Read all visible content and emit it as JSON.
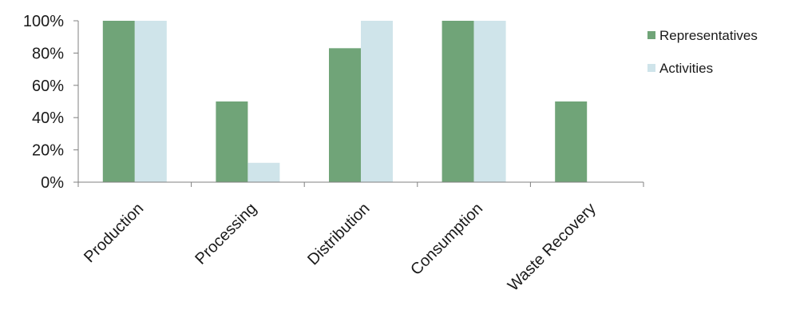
{
  "chart_data": {
    "type": "bar",
    "title": "",
    "xlabel": "",
    "ylabel": "",
    "categories": [
      "Production",
      "Processing",
      "Distribution",
      "Consumption",
      "Waste Recovery"
    ],
    "series": [
      {
        "name": "Representatives",
        "values": [
          100,
          50,
          83,
          100,
          50
        ],
        "color": "#70a478"
      },
      {
        "name": "Activities",
        "values": [
          100,
          12,
          100,
          100,
          0
        ],
        "color": "#cfe4ea"
      }
    ],
    "ylim": [
      0,
      100
    ],
    "yticks": [
      "0%",
      "20%",
      "40%",
      "60%",
      "80%",
      "100%"
    ],
    "grid": false,
    "legend_position": "right"
  }
}
